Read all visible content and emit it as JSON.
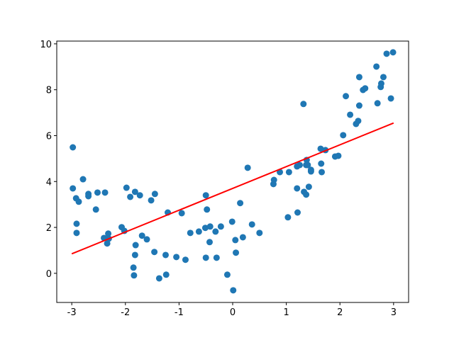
{
  "chart_data": {
    "type": "scatter",
    "xlim": [
      -3.28,
      3.28
    ],
    "ylim": [
      -1.27,
      10.12
    ],
    "xticks": [
      -3,
      -2,
      -1,
      0,
      1,
      2,
      3
    ],
    "yticks": [
      0,
      2,
      4,
      6,
      8,
      10
    ],
    "series": [
      {
        "type": "scatter",
        "color": "#1f77b4",
        "x": [
          -2.98,
          -2.98,
          -2.92,
          -2.87,
          -2.91,
          -2.91,
          -2.79,
          -2.69,
          -2.69,
          -2.52,
          -2.55,
          -2.38,
          -2.4,
          -2.32,
          -2.34,
          -2.31,
          -2.07,
          -2.02,
          -1.98,
          -1.91,
          -1.82,
          -1.73,
          -1.81,
          -1.82,
          -1.85,
          -1.84,
          -1.69,
          -1.6,
          -1.52,
          -1.45,
          -1.46,
          -1.37,
          -1.25,
          -1.24,
          -1.21,
          -1.05,
          -0.95,
          -0.88,
          -0.79,
          -0.63,
          -0.51,
          -0.5,
          -0.48,
          -0.5,
          -0.42,
          -0.43,
          -0.32,
          -0.3,
          -0.22,
          -0.1,
          -0.01,
          0.01,
          0.05,
          0.06,
          0.14,
          0.19,
          0.28,
          0.36,
          0.5,
          0.76,
          0.77,
          0.88,
          1.03,
          1.05,
          1.2,
          1.2,
          1.21,
          1.25,
          1.32,
          1.33,
          1.37,
          1.37,
          1.4,
          1.38,
          1.42,
          1.46,
          1.46,
          1.64,
          1.65,
          1.66,
          1.73,
          1.91,
          1.97,
          2.06,
          2.11,
          2.19,
          2.3,
          2.34,
          2.36,
          2.36,
          2.43,
          2.47,
          2.68,
          2.7,
          2.76,
          2.77,
          2.81,
          2.87,
          2.95,
          2.99
        ],
        "values": [
          5.49,
          3.7,
          3.27,
          3.12,
          2.16,
          1.76,
          4.1,
          3.46,
          3.36,
          3.52,
          2.78,
          3.52,
          1.54,
          1.73,
          1.3,
          1.51,
          2.01,
          1.85,
          3.73,
          3.33,
          3.55,
          3.4,
          1.23,
          0.8,
          0.25,
          -0.09,
          1.64,
          1.48,
          3.18,
          3.46,
          0.93,
          -0.22,
          0.8,
          -0.06,
          2.65,
          0.71,
          2.62,
          0.59,
          1.76,
          1.82,
          1.98,
          3.4,
          2.78,
          0.68,
          2.04,
          1.36,
          1.82,
          0.68,
          2.04,
          -0.06,
          2.25,
          -0.74,
          1.45,
          0.9,
          3.06,
          1.57,
          4.6,
          2.13,
          1.76,
          3.89,
          4.07,
          4.41,
          2.44,
          4.41,
          4.66,
          3.7,
          2.65,
          4.72,
          7.38,
          3.55,
          4.72,
          3.43,
          4.72,
          4.94,
          3.77,
          4.51,
          4.44,
          5.43,
          4.78,
          4.41,
          5.37,
          5.09,
          5.12,
          6.02,
          7.72,
          6.91,
          6.51,
          6.64,
          7.31,
          8.55,
          7.99,
          8.06,
          9.01,
          7.41,
          8.12,
          8.27,
          8.55,
          9.57,
          7.62,
          9.63
        ]
      },
      {
        "type": "line",
        "color": "#ff0000",
        "x": [
          -3,
          3
        ],
        "values": [
          0.85,
          6.55
        ]
      }
    ]
  }
}
